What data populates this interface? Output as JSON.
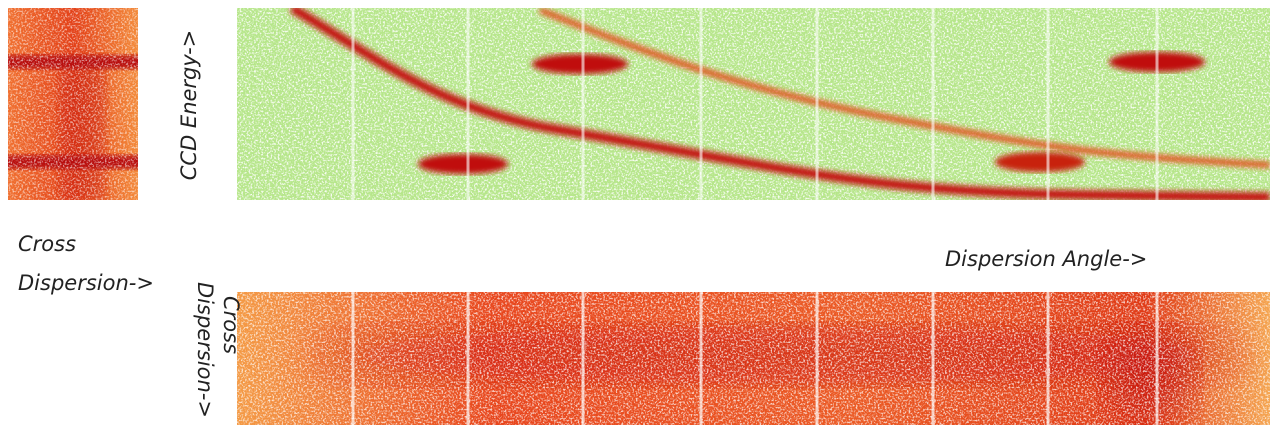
{
  "left_panel": {
    "label_lines": [
      "Cross",
      "Dispersion->"
    ]
  },
  "top_panel": {
    "axis_label": "CCD Energy->",
    "x_label": "Dispersion Angle->"
  },
  "bottom_panel": {
    "axis_label_lines": [
      "Cross",
      "Dispersion->"
    ]
  }
}
